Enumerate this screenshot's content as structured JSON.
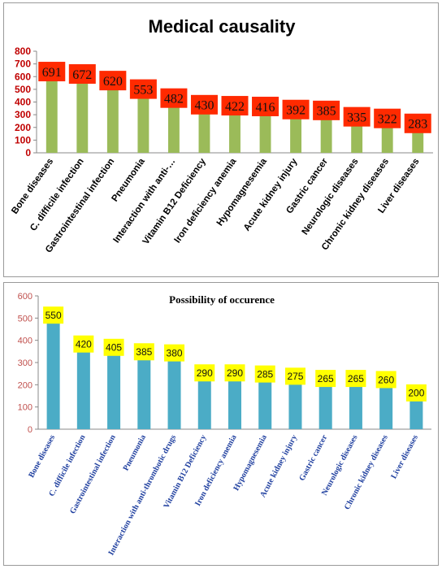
{
  "chart_data": [
    {
      "type": "bar",
      "title": "Medical  causality",
      "categories": [
        "Bone diseases",
        "C. difficile infection",
        "Gastrointestinal infection",
        "Pneumonia",
        "Interaction with anti-…",
        "Vitamin B12 Deficiency",
        "Iron deficiency anemia",
        "Hypomagnesemia",
        "Acute kidney injury",
        "Gastric cancer",
        "Neurologic diseases",
        "Chronic kidney diseases",
        "Liver diseases"
      ],
      "values": [
        691,
        672,
        620,
        553,
        482,
        430,
        422,
        416,
        392,
        385,
        335,
        322,
        283
      ],
      "ylim": [
        0,
        800
      ],
      "yticks": [
        0,
        100,
        200,
        300,
        400,
        500,
        600,
        700,
        800
      ],
      "grid": false,
      "legend": "none",
      "colors": {
        "bar": "#9bbb59",
        "label_box": "#ff2a00",
        "label_text": "#111111",
        "axis_text": "#c00000",
        "title": "#000000",
        "category_text": "#000000"
      }
    },
    {
      "type": "bar",
      "title": "Possibility of occurence",
      "categories": [
        "Bone diseases",
        "C. difficile infection",
        "Gastrointestinal infection",
        "Pneumonia",
        "Interaction with anti-thrombotic drugs",
        "Vitamin B12 Deficiency",
        "Iron deficiency anemia",
        "Hypomagnesemia",
        "Acute kidney injury",
        "Gastric cancer",
        "Neurologic diseases",
        "Chronic kidney diseases",
        "Liver diseases"
      ],
      "values": [
        550,
        420,
        405,
        385,
        380,
        290,
        290,
        285,
        275,
        265,
        265,
        260,
        200
      ],
      "ylim": [
        0,
        600
      ],
      "yticks": [
        0,
        100,
        200,
        300,
        400,
        500,
        600
      ],
      "grid": false,
      "legend": "none",
      "colors": {
        "bar": "#4bacc6",
        "label_box": "#ffff00",
        "label_text": "#111111",
        "axis_text": "#c0504d",
        "title": "#000000",
        "category_text": "#1f3f9f"
      }
    }
  ]
}
